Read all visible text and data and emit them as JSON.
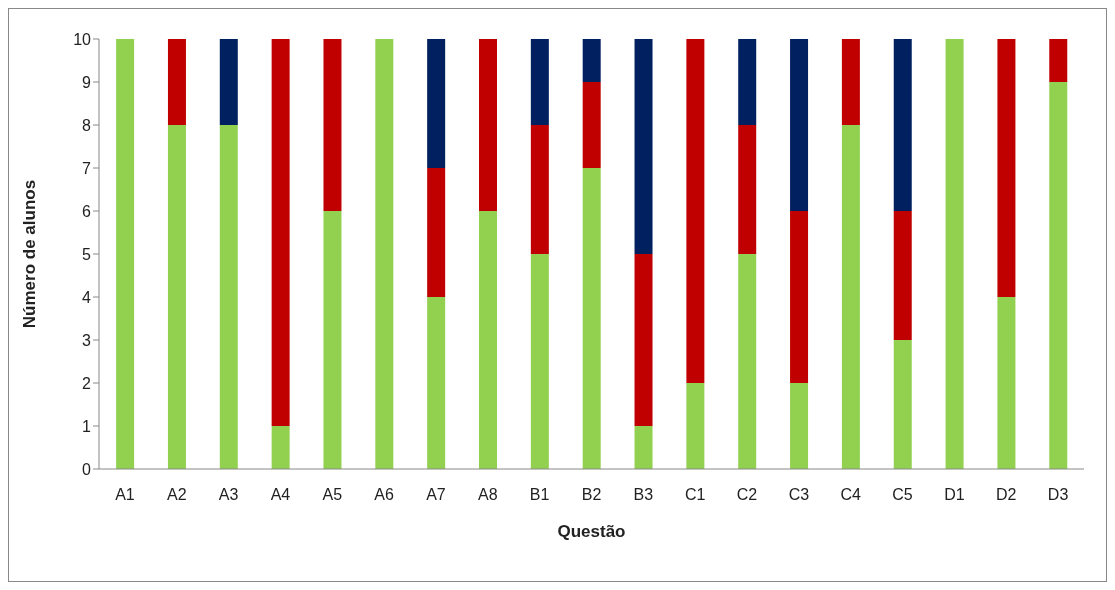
{
  "chart_data": {
    "type": "bar",
    "stacked": true,
    "xlabel": "Questão",
    "ylabel": "Número de alunos",
    "categories": [
      "A1",
      "A2",
      "A3",
      "A4",
      "A5",
      "A6",
      "A7",
      "A8",
      "B1",
      "B2",
      "B3",
      "C1",
      "C2",
      "C3",
      "C4",
      "C5",
      "D1",
      "D2",
      "D3"
    ],
    "series": [
      {
        "color": "#92d050",
        "values": [
          10,
          8,
          8,
          1,
          6,
          10,
          4,
          6,
          5,
          7,
          1,
          2,
          5,
          2,
          8,
          3,
          10,
          4,
          9
        ]
      },
      {
        "color": "#c00000",
        "values": [
          0,
          2,
          0,
          9,
          4,
          0,
          3,
          4,
          3,
          2,
          4,
          8,
          3,
          4,
          2,
          3,
          0,
          6,
          1
        ]
      },
      {
        "color": "#002060",
        "values": [
          0,
          0,
          2,
          0,
          0,
          0,
          3,
          0,
          2,
          1,
          5,
          0,
          2,
          4,
          0,
          4,
          0,
          0,
          0
        ]
      }
    ],
    "ylim": [
      0,
      10
    ],
    "yticks": [
      0,
      1,
      2,
      3,
      4,
      5,
      6,
      7,
      8,
      9,
      10
    ],
    "grid": false,
    "legend": false
  }
}
